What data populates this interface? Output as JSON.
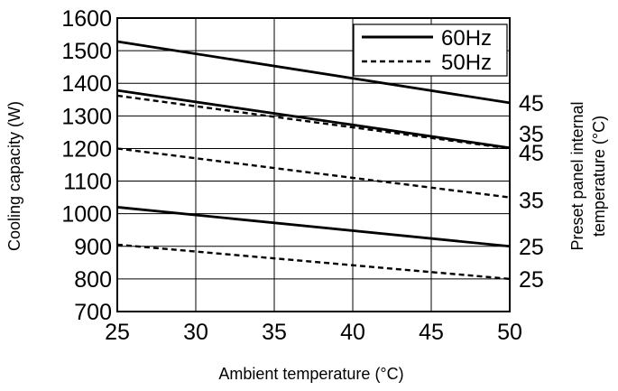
{
  "chart_data": {
    "type": "line",
    "title": "",
    "xlabel": "Ambient temperature (°C)",
    "ylabel": "Cooling capacity (W)",
    "right_label_line1": "Preset panel internal",
    "right_label_line2": "temperature (°C)",
    "xlim": [
      25,
      50
    ],
    "ylim": [
      700,
      1600
    ],
    "x_ticks": [
      25,
      30,
      35,
      40,
      45,
      50
    ],
    "y_ticks": [
      700,
      800,
      900,
      1000,
      1100,
      1200,
      1300,
      1400,
      1500,
      1600
    ],
    "grid": true,
    "legend_position": "top-right",
    "legend": [
      {
        "label": "60Hz",
        "style": "solid"
      },
      {
        "label": "50Hz",
        "style": "dashed"
      }
    ],
    "series": [
      {
        "frequency": "60Hz",
        "panel_temp": "45",
        "x": [
          25,
          50
        ],
        "y": [
          1528,
          1340
        ],
        "style": "solid"
      },
      {
        "frequency": "60Hz",
        "panel_temp": "35",
        "x": [
          25,
          50
        ],
        "y": [
          1378,
          1202
        ],
        "style": "solid"
      },
      {
        "frequency": "60Hz",
        "panel_temp": "25",
        "x": [
          25,
          50
        ],
        "y": [
          1020,
          900
        ],
        "style": "solid"
      },
      {
        "frequency": "50Hz",
        "panel_temp": "45",
        "x": [
          25,
          50
        ],
        "y": [
          1362,
          1200
        ],
        "style": "dashed"
      },
      {
        "frequency": "50Hz",
        "panel_temp": "35",
        "x": [
          25,
          50
        ],
        "y": [
          1200,
          1050
        ],
        "style": "dashed"
      },
      {
        "frequency": "50Hz",
        "panel_temp": "25",
        "x": [
          25,
          50
        ],
        "y": [
          905,
          800
        ],
        "style": "dashed"
      }
    ],
    "right_labels": [
      {
        "text": "45",
        "y": 1340
      },
      {
        "text": "35",
        "y": 1245
      },
      {
        "text": "45",
        "y": 1188
      },
      {
        "text": "35",
        "y": 1042
      },
      {
        "text": "25",
        "y": 900
      },
      {
        "text": "25",
        "y": 800
      }
    ],
    "colors": {
      "line": "#000000",
      "grid": "#000000",
      "background": "#ffffff"
    }
  }
}
